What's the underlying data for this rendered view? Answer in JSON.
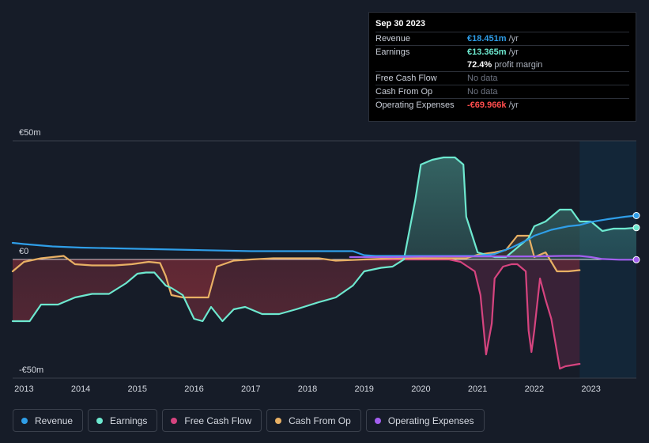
{
  "tooltip": {
    "date": "Sep 30 2023",
    "rows": {
      "revenue": {
        "label": "Revenue",
        "value": "€18.451m",
        "unit": "/yr"
      },
      "earnings": {
        "label": "Earnings",
        "value": "€13.365m",
        "unit": "/yr"
      },
      "margin": {
        "value": "72.4%",
        "unit": "profit margin"
      },
      "fcf": {
        "label": "Free Cash Flow",
        "value": "No data"
      },
      "cfo": {
        "label": "Cash From Op",
        "value": "No data"
      },
      "opex": {
        "label": "Operating Expenses",
        "value": "-€69.966k",
        "unit": "/yr"
      }
    }
  },
  "colors": {
    "revenue": "#2f9ee8",
    "earnings": "#6de8cf",
    "fcf": "#d6447f",
    "cfo": "#e8b064",
    "opex": "#a35ff0",
    "background": "#161c28",
    "forecast_band": "#13283a"
  },
  "chart_data": {
    "type": "line",
    "ylim": [
      -50,
      50
    ],
    "xlim": [
      2012.8,
      2023.8
    ],
    "y_tick_labels": [
      {
        "value": 50,
        "label": "€50m"
      },
      {
        "value": 0,
        "label": "€0"
      },
      {
        "value": -50,
        "label": "-€50m"
      }
    ],
    "x_tick_labels": [
      "2013",
      "2014",
      "2015",
      "2016",
      "2017",
      "2018",
      "2019",
      "2020",
      "2021",
      "2022",
      "2023"
    ],
    "x_ticks": [
      2013,
      2014,
      2015,
      2016,
      2017,
      2018,
      2019,
      2020,
      2021,
      2022,
      2023
    ],
    "highlight_from": 2022.8,
    "series": [
      {
        "key": "fcf",
        "name": "Free Cash Flow",
        "fill": "area",
        "x": [
          2019.0,
          2019.5,
          2020.0,
          2020.5,
          2020.7,
          2020.95,
          2021.05,
          2021.15,
          2021.25,
          2021.3,
          2021.45,
          2021.6,
          2021.7,
          2021.85,
          2021.9,
          2021.95,
          2022.0,
          2022.1,
          2022.2,
          2022.3,
          2022.45,
          2022.55,
          2022.8
        ],
        "y": [
          0,
          0,
          0,
          0,
          -1,
          -5,
          -15,
          -40,
          -27,
          -8,
          -3,
          -2,
          -2,
          -5,
          -30,
          -39,
          -30,
          -8,
          -17,
          -25,
          -46,
          -45,
          -44
        ]
      },
      {
        "key": "cfo",
        "name": "Cash From Op",
        "fill": "area",
        "x": [
          2012.8,
          2013.0,
          2013.3,
          2013.7,
          2013.9,
          2014.2,
          2014.6,
          2014.9,
          2015.2,
          2015.4,
          2015.5,
          2015.6,
          2015.8,
          2016.0,
          2016.25,
          2016.4,
          2016.7,
          2017.0,
          2017.4,
          2017.8,
          2018.2,
          2018.5,
          2019.0,
          2019.5,
          2020.0,
          2020.5,
          2020.8,
          2021.0,
          2021.3,
          2021.5,
          2021.7,
          2021.9,
          2022.0,
          2022.2,
          2022.4,
          2022.6,
          2022.8
        ],
        "y": [
          -5,
          -1,
          0.5,
          1.5,
          -2,
          -2.5,
          -2.5,
          -2,
          -1,
          -1.5,
          -7,
          -15,
          -16,
          -16,
          -16,
          -3,
          -0.5,
          0,
          0.5,
          0.5,
          0.5,
          -0.5,
          0,
          0.5,
          0.5,
          0.5,
          0.5,
          2,
          3,
          4,
          10,
          10,
          1,
          3,
          -5,
          -5,
          -4.5
        ]
      },
      {
        "key": "earnings",
        "name": "Earnings",
        "fill": "area",
        "x": [
          2012.8,
          2013.1,
          2013.3,
          2013.6,
          2013.9,
          2014.2,
          2014.5,
          2014.8,
          2015.0,
          2015.15,
          2015.3,
          2015.5,
          2015.6,
          2015.8,
          2016.0,
          2016.15,
          2016.3,
          2016.5,
          2016.7,
          2016.9,
          2017.2,
          2017.5,
          2017.8,
          2018.2,
          2018.5,
          2018.8,
          2019.0,
          2019.3,
          2019.5,
          2019.7,
          2019.9,
          2020.0,
          2020.2,
          2020.4,
          2020.6,
          2020.75,
          2020.8,
          2021.0,
          2021.3,
          2021.5,
          2021.7,
          2021.9,
          2022.0,
          2022.2,
          2022.45,
          2022.65,
          2022.8,
          2023.0,
          2023.2,
          2023.4,
          2023.6,
          2023.8
        ],
        "y": [
          -26,
          -26,
          -19,
          -19,
          -16,
          -14.5,
          -14.5,
          -10,
          -6,
          -5.5,
          -5.5,
          -11,
          -12,
          -15,
          -25,
          -26,
          -20,
          -26,
          -21,
          -20,
          -23,
          -23,
          -21,
          -18,
          -16,
          -11,
          -5,
          -3.5,
          -3,
          0,
          25,
          40,
          42,
          43,
          43,
          40,
          18,
          3,
          1,
          1,
          5,
          9,
          14,
          16,
          21,
          21,
          16,
          16,
          12,
          13,
          13,
          13.4
        ]
      },
      {
        "key": "revenue",
        "name": "Revenue",
        "fill": "none",
        "x": [
          2012.8,
          2013.0,
          2013.5,
          2014.0,
          2015.0,
          2016.0,
          2017.0,
          2018.0,
          2018.8,
          2019.0,
          2019.2,
          2019.5,
          2020.0,
          2020.5,
          2021.0,
          2021.3,
          2021.6,
          2021.9,
          2022.0,
          2022.3,
          2022.6,
          2022.8,
          2023.0,
          2023.3,
          2023.6,
          2023.8
        ],
        "y": [
          7,
          6.5,
          5.5,
          5,
          4.5,
          4,
          3.5,
          3.5,
          3.5,
          1.8,
          1.5,
          1.5,
          1.5,
          1.5,
          1.5,
          2.3,
          5,
          8.5,
          10,
          12.5,
          14,
          14.5,
          15.8,
          17,
          18,
          18.5
        ]
      },
      {
        "key": "opex",
        "name": "Operating Expenses",
        "fill": "none",
        "x": [
          2018.75,
          2019.0,
          2019.5,
          2020.0,
          2020.5,
          2021.0,
          2021.5,
          2022.0,
          2022.5,
          2022.8,
          2023.0,
          2023.2,
          2023.5,
          2023.8
        ],
        "y": [
          1.0,
          1.0,
          1.0,
          1.2,
          1.3,
          1.3,
          1.3,
          1.3,
          1.5,
          1.5,
          1.0,
          0.2,
          -0.1,
          -0.1
        ]
      }
    ],
    "legend": [
      {
        "key": "revenue",
        "label": "Revenue"
      },
      {
        "key": "earnings",
        "label": "Earnings"
      },
      {
        "key": "fcf",
        "label": "Free Cash Flow"
      },
      {
        "key": "cfo",
        "label": "Cash From Op"
      },
      {
        "key": "opex",
        "label": "Operating Expenses"
      }
    ]
  }
}
